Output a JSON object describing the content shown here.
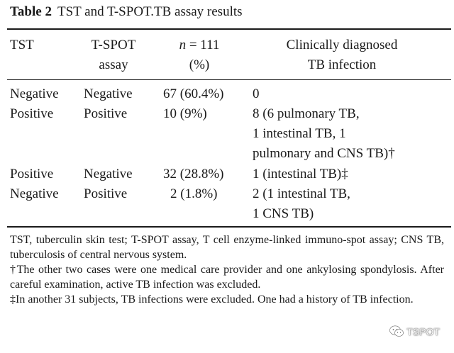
{
  "caption": {
    "label": "Table 2",
    "title": "TST and T-SPOT.TB assay results"
  },
  "headers": {
    "tst": "TST",
    "tspot_line1": "T-SPOT",
    "tspot_line2": "assay",
    "n_line1": "n = 111",
    "n_line2": "(%)",
    "clin_line1": "Clinically diagnosed",
    "clin_line2": "TB infection"
  },
  "rows": [
    {
      "tst": "Negative",
      "tspot": "Negative",
      "n": "67 (60.4%)",
      "clin": [
        "0"
      ]
    },
    {
      "tst": "Positive",
      "tspot": "Positive",
      "n": "10 (9%)",
      "clin": [
        "8 (6 pulmonary TB,",
        "1 intestinal TB, 1",
        "pulmonary and CNS TB)†"
      ]
    },
    {
      "tst": "Positive",
      "tspot": "Negative",
      "n": "32 (28.8%)",
      "clin": [
        "1 (intestinal TB)‡"
      ]
    },
    {
      "tst": "Negative",
      "tspot": "Positive",
      "n": "2 (1.8%)",
      "clin": [
        "2 (1 intestinal TB,",
        "1 CNS TB)"
      ]
    }
  ],
  "notes": [
    "TST, tuberculin skin test; T-SPOT assay, T cell enzyme-linked immuno-spot assay; CNS TB, tuberculosis of central nervous system.",
    "†The other two cases were one medical care provider and one ankylosing spondylosis. After careful examination, active TB infection was excluded.",
    "‡In another 31 subjects, TB infections were excluded. One had a history of TB infection."
  ],
  "watermark": {
    "text": "TSPOT",
    "icon": "wechat-icon"
  }
}
